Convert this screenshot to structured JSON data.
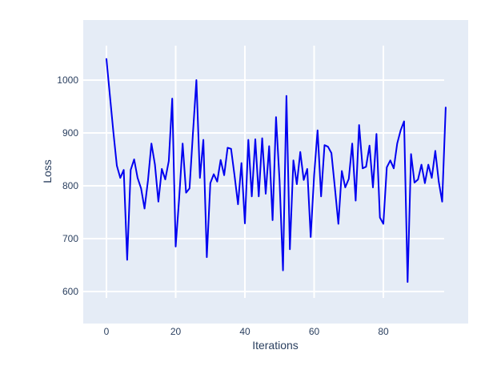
{
  "chart_data": {
    "type": "line",
    "title": "",
    "xlabel": "Iterations",
    "ylabel": "Loss",
    "legend": null,
    "grid": true,
    "x_start": 0,
    "x_step": 1,
    "x_ticks": [
      0,
      20,
      40,
      60,
      80
    ],
    "y_ticks": [
      600,
      700,
      800,
      900,
      1000
    ],
    "xlim": [
      -7,
      104.5
    ],
    "ylim": [
      540,
      1114
    ],
    "series": [
      {
        "name": "loss",
        "values": [
          1040,
          971,
          901,
          838,
          815,
          830,
          660,
          830,
          850,
          815,
          795,
          757,
          810,
          880,
          840,
          770,
          832,
          812,
          847,
          965,
          685,
          775,
          880,
          787,
          795,
          900,
          1000,
          815,
          887,
          665,
          805,
          822,
          808,
          849,
          820,
          872,
          870,
          820,
          765,
          843,
          729,
          887,
          780,
          888,
          780,
          890,
          785,
          875,
          735,
          930,
          810,
          640,
          970,
          680,
          848,
          803,
          864,
          811,
          832,
          703,
          820,
          905,
          780,
          877,
          874,
          862,
          797,
          728,
          828,
          797,
          813,
          880,
          772,
          915,
          833,
          836,
          876,
          797,
          898,
          740,
          728,
          835,
          848,
          833,
          880,
          905,
          922,
          618,
          860,
          806,
          812,
          840,
          805,
          840,
          815,
          866,
          808,
          770,
          948
        ]
      }
    ],
    "colors": {
      "line": "#0000f0",
      "plot_background": "#e5ecf6",
      "gridline": "#ffffff",
      "text": "#2a3f5f",
      "page_background": "#ffffff"
    }
  }
}
